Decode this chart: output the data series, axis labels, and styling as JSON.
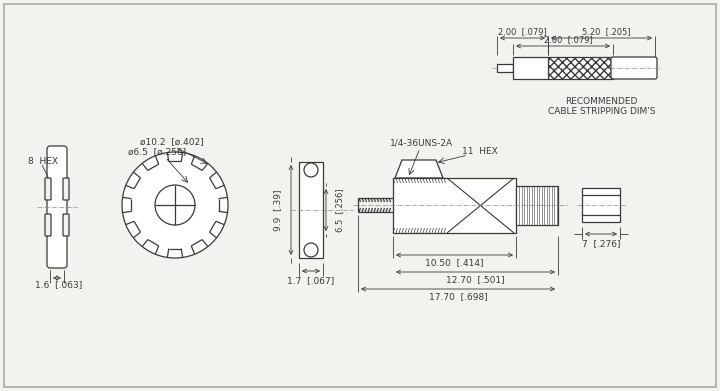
{
  "bg_color": "#f2f2ee",
  "line_color": "#3a3a3a",
  "annotations": {
    "hex_left": "8  HEX",
    "hex_main": "11  HEX",
    "thread": "1/4-36UNS-2A",
    "dim_16": "1.6  [.063]",
    "dim_17": "1.7  [.067]",
    "dim_10_2": "ø10.2  [ø.402]",
    "dim_6_5": "ø6.5  [ø.256]",
    "dim_9_9": "9.9  [.39]",
    "dim_6_5b": "6.5  [.256]",
    "dim_1050": "10.50  [.414]",
    "dim_1270": "12.70  [.501]",
    "dim_1770": "17.70  [.698]",
    "dim_7": "➤7  [.276]➤",
    "cable_200a": "2.00  [.079]",
    "cable_200b": "2.00  [.079]",
    "cable_520": "5.20  [.205]",
    "recommended": "RECOMMENDED\nCABLE STRIPPING DIM'S"
  }
}
